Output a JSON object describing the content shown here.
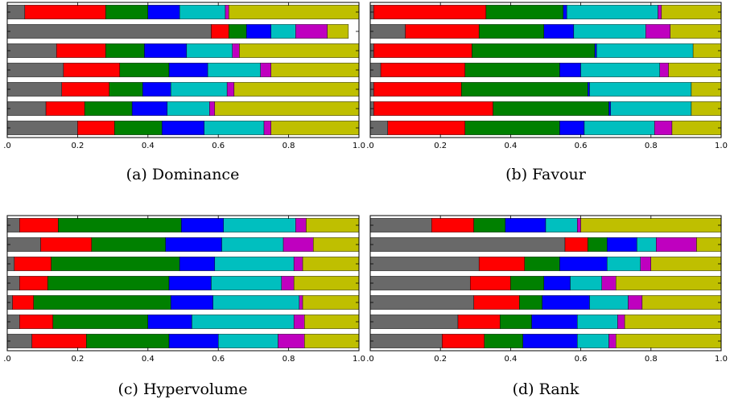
{
  "palette": [
    "#696969",
    "#ff0000",
    "#008000",
    "#0000ff",
    "#00bfbf",
    "#bf00bf",
    "#bfbf00"
  ],
  "x_ticks": [
    ".0",
    "0.2",
    "0.4",
    "0.6",
    "0.8",
    "1.0"
  ],
  "chart_data": [
    {
      "type": "bar",
      "orientation": "horizontal-stacked",
      "caption": "(a) Dominance",
      "xlim": [
        0,
        1
      ],
      "grid": false,
      "rows": [
        [
          0.05,
          0.23,
          0.12,
          0.09,
          0.13,
          0.01,
          0.37
        ],
        [
          0.58,
          0.05,
          0.05,
          0.07,
          0.07,
          0.09,
          0.06
        ],
        [
          0.14,
          0.14,
          0.11,
          0.12,
          0.13,
          0.02,
          0.34
        ],
        [
          0.16,
          0.16,
          0.14,
          0.11,
          0.15,
          0.03,
          0.25
        ],
        [
          0.155,
          0.135,
          0.095,
          0.08,
          0.16,
          0.02,
          0.355
        ],
        [
          0.11,
          0.11,
          0.135,
          0.1,
          0.12,
          0.015,
          0.41
        ],
        [
          0.2,
          0.105,
          0.135,
          0.12,
          0.17,
          0.02,
          0.25
        ]
      ]
    },
    {
      "type": "bar",
      "orientation": "horizontal-stacked",
      "caption": "(b) Favour",
      "xlim": [
        0,
        1
      ],
      "grid": false,
      "rows": [
        [
          0.01,
          0.32,
          0.22,
          0.01,
          0.26,
          0.01,
          0.17
        ],
        [
          0.1,
          0.21,
          0.185,
          0.085,
          0.205,
          0.07,
          0.145
        ],
        [
          0.01,
          0.28,
          0.35,
          0.005,
          0.275,
          0.0,
          0.08
        ],
        [
          0.03,
          0.24,
          0.27,
          0.06,
          0.225,
          0.025,
          0.15
        ],
        [
          0.01,
          0.25,
          0.36,
          0.005,
          0.29,
          0.0,
          0.085
        ],
        [
          0.01,
          0.34,
          0.33,
          0.005,
          0.23,
          0.0,
          0.085
        ],
        [
          0.05,
          0.22,
          0.27,
          0.07,
          0.2,
          0.05,
          0.14
        ]
      ]
    },
    {
      "type": "bar",
      "orientation": "horizontal-stacked",
      "caption": "(c) Hypervolume",
      "xlim": [
        0,
        1
      ],
      "grid": false,
      "rows": [
        [
          0.035,
          0.11,
          0.35,
          0.12,
          0.205,
          0.03,
          0.15
        ],
        [
          0.095,
          0.145,
          0.21,
          0.16,
          0.175,
          0.085,
          0.13
        ],
        [
          0.02,
          0.105,
          0.365,
          0.1,
          0.225,
          0.025,
          0.16
        ],
        [
          0.035,
          0.08,
          0.345,
          0.12,
          0.2,
          0.035,
          0.185
        ],
        [
          0.015,
          0.06,
          0.39,
          0.12,
          0.245,
          0.01,
          0.16
        ],
        [
          0.035,
          0.095,
          0.27,
          0.125,
          0.29,
          0.03,
          0.155
        ],
        [
          0.07,
          0.155,
          0.235,
          0.14,
          0.17,
          0.075,
          0.155
        ]
      ]
    },
    {
      "type": "bar",
      "orientation": "horizontal-stacked",
      "caption": "(d) Rank",
      "xlim": [
        0,
        1
      ],
      "grid": false,
      "rows": [
        [
          0.175,
          0.12,
          0.09,
          0.115,
          0.09,
          0.01,
          0.4
        ],
        [
          0.555,
          0.065,
          0.055,
          0.085,
          0.055,
          0.115,
          0.07
        ],
        [
          0.31,
          0.13,
          0.1,
          0.135,
          0.095,
          0.03,
          0.2
        ],
        [
          0.285,
          0.115,
          0.095,
          0.075,
          0.09,
          0.04,
          0.3
        ],
        [
          0.295,
          0.13,
          0.065,
          0.135,
          0.11,
          0.04,
          0.225
        ],
        [
          0.25,
          0.12,
          0.09,
          0.13,
          0.115,
          0.02,
          0.275
        ],
        [
          0.205,
          0.12,
          0.11,
          0.155,
          0.09,
          0.02,
          0.3
        ]
      ]
    }
  ]
}
